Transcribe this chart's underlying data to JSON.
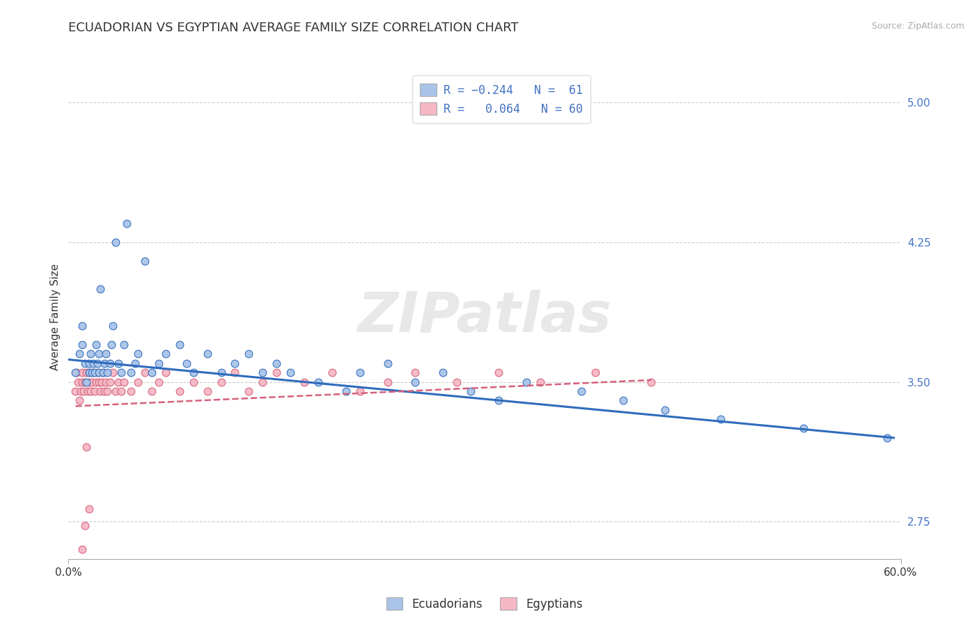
{
  "title": "ECUADORIAN VS EGYPTIAN AVERAGE FAMILY SIZE CORRELATION CHART",
  "source_text": "Source: ZipAtlas.com",
  "ylabel": "Average Family Size",
  "xlim": [
    0.0,
    0.6
  ],
  "ylim": [
    2.55,
    5.15
  ],
  "yticks": [
    2.75,
    3.5,
    4.25,
    5.0
  ],
  "xticks": [
    0.0,
    0.6
  ],
  "xticklabels": [
    "0.0%",
    "60.0%"
  ],
  "title_fontsize": 13,
  "watermark": "ZIPatlas",
  "ecuadorian_color": "#aac4e8",
  "ecuadorian_line_color": "#2e6bbd",
  "egyptian_color": "#f5b8c4",
  "egyptian_line_color": "#d4607a",
  "legend_label_color": "#4472c4",
  "ytick_color": "#4472c4",
  "grid_color": "#cccccc",
  "ecu_x": [
    0.005,
    0.008,
    0.01,
    0.01,
    0.012,
    0.013,
    0.015,
    0.015,
    0.016,
    0.017,
    0.018,
    0.019,
    0.02,
    0.021,
    0.022,
    0.022,
    0.023,
    0.025,
    0.026,
    0.027,
    0.028,
    0.03,
    0.031,
    0.032,
    0.034,
    0.036,
    0.038,
    0.04,
    0.042,
    0.045,
    0.048,
    0.05,
    0.055,
    0.06,
    0.065,
    0.07,
    0.08,
    0.085,
    0.09,
    0.1,
    0.11,
    0.12,
    0.13,
    0.14,
    0.15,
    0.16,
    0.18,
    0.2,
    0.21,
    0.23,
    0.25,
    0.27,
    0.29,
    0.31,
    0.33,
    0.37,
    0.4,
    0.43,
    0.47,
    0.53,
    0.59
  ],
  "ecu_y": [
    3.55,
    3.65,
    3.7,
    3.8,
    3.6,
    3.5,
    3.55,
    3.6,
    3.65,
    3.55,
    3.6,
    3.55,
    3.7,
    3.6,
    3.55,
    3.65,
    4.0,
    3.55,
    3.6,
    3.65,
    3.55,
    3.6,
    3.7,
    3.8,
    4.25,
    3.6,
    3.55,
    3.7,
    4.35,
    3.55,
    3.6,
    3.65,
    4.15,
    3.55,
    3.6,
    3.65,
    3.7,
    3.6,
    3.55,
    3.65,
    3.55,
    3.6,
    3.65,
    3.55,
    3.6,
    3.55,
    3.5,
    3.45,
    3.55,
    3.6,
    3.5,
    3.55,
    3.45,
    3.4,
    3.5,
    3.45,
    3.4,
    3.35,
    3.3,
    3.25,
    3.2
  ],
  "egy_x": [
    0.005,
    0.006,
    0.007,
    0.008,
    0.009,
    0.01,
    0.01,
    0.011,
    0.012,
    0.013,
    0.014,
    0.015,
    0.015,
    0.016,
    0.017,
    0.018,
    0.019,
    0.02,
    0.021,
    0.022,
    0.023,
    0.024,
    0.025,
    0.026,
    0.027,
    0.028,
    0.03,
    0.032,
    0.034,
    0.036,
    0.038,
    0.04,
    0.045,
    0.05,
    0.055,
    0.06,
    0.065,
    0.07,
    0.08,
    0.09,
    0.1,
    0.11,
    0.12,
    0.13,
    0.14,
    0.15,
    0.17,
    0.19,
    0.21,
    0.23,
    0.25,
    0.28,
    0.31,
    0.34,
    0.38,
    0.42,
    0.01,
    0.012,
    0.015,
    0.013
  ],
  "egy_y": [
    3.45,
    3.55,
    3.5,
    3.4,
    3.45,
    3.55,
    3.5,
    3.45,
    3.5,
    3.55,
    3.45,
    3.5,
    3.55,
    3.45,
    3.5,
    3.55,
    3.45,
    3.5,
    3.55,
    3.5,
    3.45,
    3.5,
    3.55,
    3.45,
    3.5,
    3.45,
    3.5,
    3.55,
    3.45,
    3.5,
    3.45,
    3.5,
    3.45,
    3.5,
    3.55,
    3.45,
    3.5,
    3.55,
    3.45,
    3.5,
    3.45,
    3.5,
    3.55,
    3.45,
    3.5,
    3.55,
    3.5,
    3.55,
    3.45,
    3.5,
    3.55,
    3.5,
    3.55,
    3.5,
    3.55,
    3.5,
    2.6,
    2.73,
    2.82,
    3.15
  ]
}
